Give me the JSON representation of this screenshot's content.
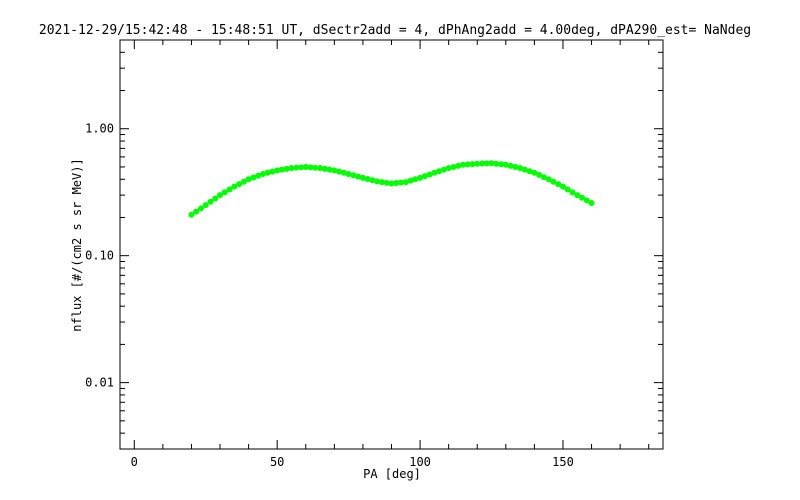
{
  "chart_data": {
    "type": "scatter",
    "title": "2021-12-29/15:42:48 - 15:48:51 UT, dSectr2add = 4, dPhAng2add = 4.00deg, dPA290_est=   NaNdeg",
    "xlabel": "PA [deg]",
    "ylabel": "nflux [#/(cm2 s sr MeV)]",
    "xlim": [
      -5,
      185
    ],
    "ylim": [
      0.003,
      5
    ],
    "yscale": "log",
    "x_ticks": [
      {
        "value": 0,
        "label": "0"
      },
      {
        "value": 50,
        "label": "50"
      },
      {
        "value": 100,
        "label": "100"
      },
      {
        "value": 150,
        "label": "150"
      }
    ],
    "y_ticks": [
      {
        "value": 0.01,
        "label": "0.01"
      },
      {
        "value": 0.1,
        "label": "0.10"
      },
      {
        "value": 1,
        "label": "1.00"
      }
    ],
    "grid": false,
    "marker_color": "#00ff00",
    "series": [
      {
        "values": [
          [
            20,
            0.21
          ],
          [
            25,
            0.25
          ],
          [
            30,
            0.3
          ],
          [
            35,
            0.35
          ],
          [
            40,
            0.4
          ],
          [
            45,
            0.44
          ],
          [
            50,
            0.47
          ],
          [
            55,
            0.49
          ],
          [
            60,
            0.5
          ],
          [
            65,
            0.49
          ],
          [
            70,
            0.47
          ],
          [
            75,
            0.44
          ],
          [
            80,
            0.41
          ],
          [
            85,
            0.385
          ],
          [
            90,
            0.37
          ],
          [
            95,
            0.38
          ],
          [
            100,
            0.41
          ],
          [
            105,
            0.45
          ],
          [
            110,
            0.49
          ],
          [
            115,
            0.52
          ],
          [
            120,
            0.53
          ],
          [
            125,
            0.535
          ],
          [
            130,
            0.52
          ],
          [
            135,
            0.49
          ],
          [
            140,
            0.45
          ],
          [
            145,
            0.4
          ],
          [
            150,
            0.35
          ],
          [
            155,
            0.3
          ],
          [
            160,
            0.26
          ]
        ]
      }
    ]
  }
}
